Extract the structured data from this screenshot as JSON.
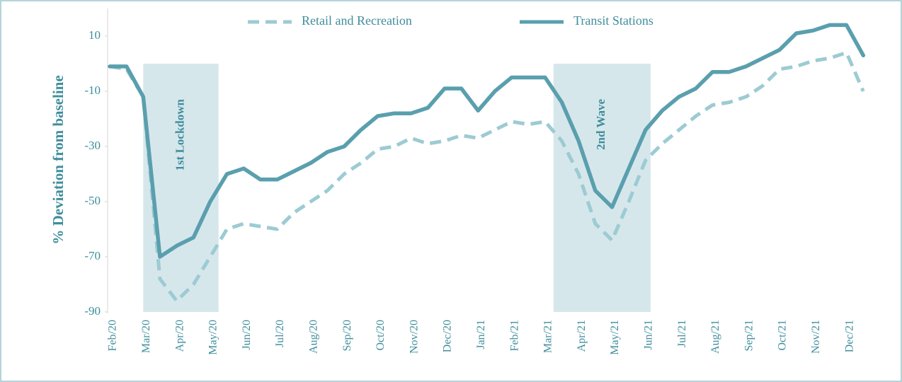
{
  "chart_data": {
    "type": "line",
    "y_label": "% Deviation from baseline",
    "categories": [
      "Feb/20",
      null,
      "Mar/20",
      null,
      "Apr/20",
      null,
      "May/20",
      null,
      "Jun/20",
      null,
      "Jul/20",
      null,
      "Aug/20",
      null,
      "Sep/20",
      null,
      "Oct/20",
      null,
      "Nov/20",
      null,
      "Dec/20",
      null,
      "Jan/21",
      null,
      "Feb/21",
      null,
      "Mar/21",
      null,
      "Apr/21",
      null,
      "May/21",
      null,
      "Jun/21",
      null,
      "Jul/21",
      null,
      "Aug/21",
      null,
      "Sep/21",
      null,
      "Oct/21",
      null,
      "Nov/21",
      null,
      "Dec/21",
      null
    ],
    "series": [
      {
        "name": "Retail and Recreation",
        "color": "#9ccbd3",
        "dashed": true,
        "values": [
          -1,
          -2,
          -12,
          -78,
          -86,
          -80,
          -70,
          -60,
          -58,
          -59,
          -60,
          -54,
          -50,
          -46,
          -40,
          -36,
          -31,
          -30,
          -27,
          -29,
          -28,
          -26,
          -27,
          -24,
          -21,
          -22,
          -21,
          -28,
          -40,
          -58,
          -64,
          -50,
          -35,
          -29,
          -24,
          -19,
          -15,
          -14,
          -12,
          -8,
          -2,
          -1,
          1,
          2,
          4,
          -10
        ]
      },
      {
        "name": "Transit Stations",
        "color": "#5a9fae",
        "dashed": false,
        "values": [
          -1,
          -1,
          -12,
          -70,
          -66,
          -63,
          -50,
          -40,
          -38,
          -42,
          -42,
          -39,
          -36,
          -32,
          -30,
          -24,
          -19,
          -18,
          -18,
          -16,
          -9,
          -9,
          -17,
          -10,
          -5,
          -5,
          -5,
          -14,
          -28,
          -46,
          -52,
          -38,
          -24,
          -17,
          -12,
          -9,
          -3,
          -3,
          -1,
          2,
          5,
          11,
          12,
          14,
          14,
          3
        ]
      }
    ],
    "shaded_regions": [
      {
        "label": "1st Lockdown",
        "start": 2,
        "end": 6.5
      },
      {
        "label": "2nd Wave",
        "start": 26.5,
        "end": 32.3
      }
    ],
    "ylim": [
      -90,
      20
    ],
    "yticks": [
      10,
      -10,
      -30,
      -50,
      -70,
      -90
    ],
    "legend": "top"
  }
}
